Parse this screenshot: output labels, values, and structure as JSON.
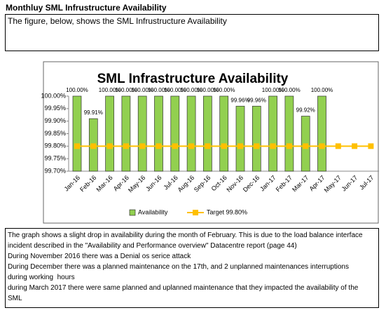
{
  "header": {
    "title": "Monthluy SML Infrustructure Availability"
  },
  "intro": {
    "text": "The figure, below, shows the SML Infrustructure Availability"
  },
  "chart_data": {
    "type": "bar",
    "title": "SML Infrastructure Availability",
    "categories": [
      "Jan-16",
      "Feb-16",
      "Mar-16",
      "Apr-16",
      "May-16",
      "Jun-16",
      "Jul-16",
      "Aug-16",
      "Sep-16",
      "Oct-16",
      "Nov-16",
      "Dec-16",
      "Jan-17",
      "Feb-17",
      "Mar-17",
      "Apr-17",
      "May-17",
      "Jun-17",
      "Jul-17"
    ],
    "series": [
      {
        "name": "Availability",
        "type": "bar",
        "color": "#92d050",
        "values": [
          100.0,
          99.91,
          100.0,
          100.0,
          100.0,
          100.0,
          100.0,
          100.0,
          100.0,
          100.0,
          99.96,
          99.96,
          100.0,
          100.0,
          99.92,
          100.0,
          null,
          null,
          null
        ],
        "value_labels": [
          "100.00%",
          "99.91%",
          "100.00%",
          "100.00%",
          "100.00%",
          "100.00%",
          "100.00%",
          "100.00%",
          "100.00%",
          "100.00%",
          "99.96%",
          "99.96%",
          "100.00%",
          "100.00%",
          "99.92%",
          "100.00%",
          null,
          null,
          null
        ]
      },
      {
        "name": "Target 99.80%",
        "type": "line",
        "color": "#ffc000",
        "values": [
          99.8,
          99.8,
          99.8,
          99.8,
          99.8,
          99.8,
          99.8,
          99.8,
          99.8,
          99.8,
          99.8,
          99.8,
          99.8,
          99.8,
          99.8,
          99.8,
          99.8,
          99.8,
          99.8
        ]
      }
    ],
    "ylim": [
      99.7,
      100.0
    ],
    "yticks": [
      {
        "value": 99.7,
        "label": "99.70%"
      },
      {
        "value": 99.75,
        "label": "99.75%"
      },
      {
        "value": 99.8,
        "label": "99.80%"
      },
      {
        "value": 99.85,
        "label": "99.85%"
      },
      {
        "value": 99.9,
        "label": "99.90%"
      },
      {
        "value": 99.95,
        "label": "99.95%"
      },
      {
        "value": 100.0,
        "label": "100.00%"
      }
    ],
    "grid": false,
    "legend": "bottom"
  },
  "notes": {
    "lines": [
      "The graph shows a slight drop in availability during the month of February. This is due to the load balance interface",
      "incident described in the \"Availability and Performance overview\" Datacentre report (page 44)",
      "During November 2016 there was a Denial os serice attack",
      "During December there was a planned maintenance on the 17th, and 2 unplanned maintenances interruptions",
      "during working  hours",
      "during March 2017 there were same planned and uplanned maintenance that they impacted the availability of the",
      "SML"
    ]
  }
}
